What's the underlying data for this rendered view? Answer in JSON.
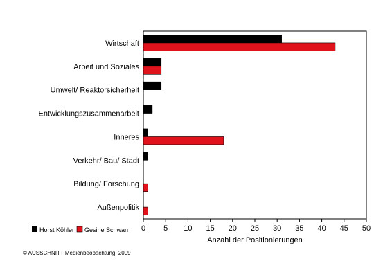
{
  "chart_data": {
    "type": "bar",
    "orientation": "horizontal",
    "categories": [
      "Wirtschaft",
      "Arbeit und Soziales",
      "Umwelt/ Reaktorsicherheit",
      "Entwicklungszusammenarbeit",
      "Inneres",
      "Verkehr/ Bau/ Stadt",
      "Bildung/ Forschung",
      "Außenpolitik"
    ],
    "series": [
      {
        "name": "Horst Köhler",
        "color": "#000000",
        "values": [
          31,
          4,
          4,
          2,
          1,
          1,
          0,
          0
        ]
      },
      {
        "name": "Gesine Schwan",
        "color": "#e0121b",
        "values": [
          43,
          4,
          0,
          0,
          18,
          0,
          1,
          1
        ]
      }
    ],
    "xlabel": "Anzahl der Positionierungen",
    "xlim": [
      0,
      50
    ],
    "xticks": [
      0,
      5,
      10,
      15,
      20,
      25,
      30,
      35,
      40,
      45,
      50
    ],
    "grid": false,
    "legend_position": "bottom-left"
  },
  "source_note": "© AUSSCHNITT Medienbeobachtung, 2009"
}
